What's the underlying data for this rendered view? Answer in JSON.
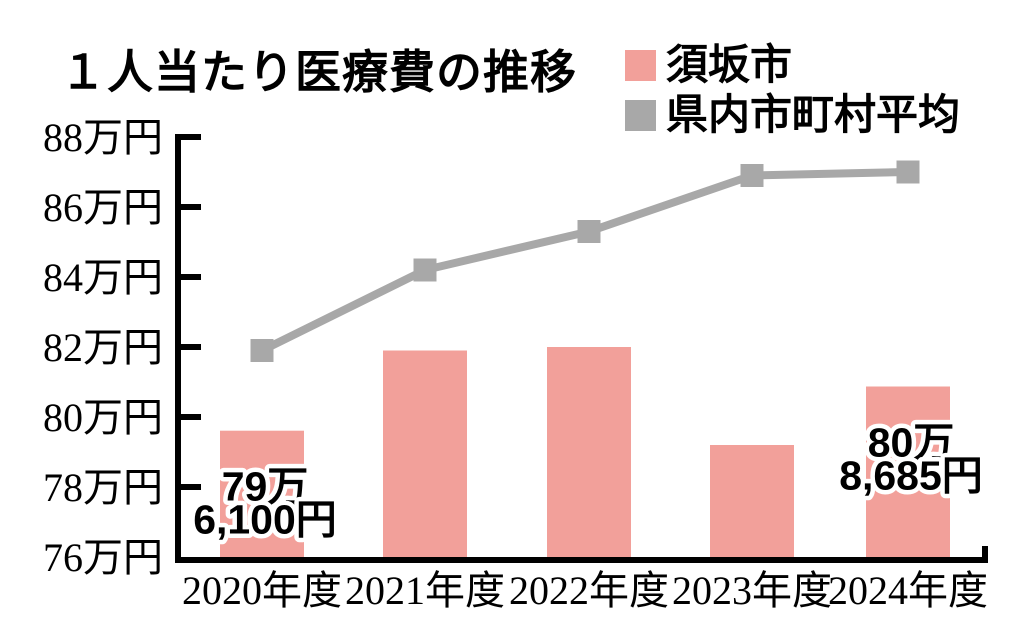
{
  "title": "１人当たり医療費の推移",
  "legend": {
    "items": [
      {
        "label": "須坂市",
        "color": "#F2A09A",
        "marker": "square"
      },
      {
        "label": "県内市町村平均",
        "color": "#A8A8A8",
        "marker": "square"
      }
    ]
  },
  "colors": {
    "bar": "#F2A09A",
    "line": "#A8A8A8",
    "axis": "#000000",
    "background": "#FFFFFF",
    "annotation_text": "#000000",
    "annotation_outline": "#FFFFFF"
  },
  "chart_data": {
    "type": "bar+line",
    "categories": [
      "2020年度",
      "2021年度",
      "2022年度",
      "2023年度",
      "2024年度"
    ],
    "series": [
      {
        "name": "須坂市",
        "type": "bar",
        "color": "#F2A09A",
        "unit": "万円",
        "values": [
          79.61,
          81.9,
          82.0,
          79.2,
          80.87
        ]
      },
      {
        "name": "県内市町村平均",
        "type": "line",
        "color": "#A8A8A8",
        "unit": "万円",
        "values": [
          81.9,
          84.2,
          85.3,
          86.9,
          87.0
        ]
      }
    ],
    "ylim": [
      76,
      88
    ],
    "ytick_step": 2,
    "yticks": [
      {
        "value": 88,
        "label": "88万円"
      },
      {
        "value": 86,
        "label": "86万円"
      },
      {
        "value": 84,
        "label": "84万円"
      },
      {
        "value": 82,
        "label": "82万円"
      },
      {
        "value": 80,
        "label": "80万円"
      },
      {
        "value": 78,
        "label": "78万円"
      },
      {
        "value": 76,
        "label": "76万円"
      }
    ],
    "grid": false,
    "legend_position": "top-right",
    "annotations": [
      {
        "category": "2020年度",
        "index": 0,
        "lines": [
          "79万",
          "6,100円"
        ],
        "value_yen": 796100
      },
      {
        "category": "2024年度",
        "index": 4,
        "lines": [
          "80万",
          "8,685円"
        ],
        "value_yen": 808685
      }
    ]
  }
}
